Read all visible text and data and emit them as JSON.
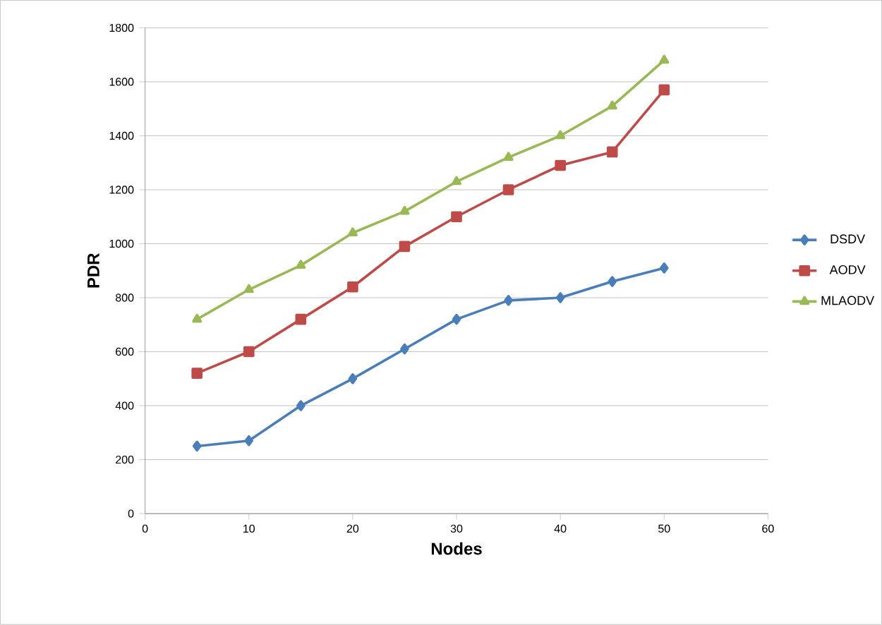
{
  "chart_data": {
    "type": "line",
    "xlabel": "Nodes",
    "ylabel": "PDR",
    "x": [
      5,
      10,
      15,
      20,
      25,
      30,
      35,
      40,
      45,
      50
    ],
    "series": [
      {
        "name": "DSDV",
        "color": "#4a7ebb",
        "marker": "diamond",
        "values": [
          250,
          270,
          400,
          500,
          610,
          720,
          790,
          800,
          860,
          910
        ]
      },
      {
        "name": "AODV",
        "color": "#be4b48",
        "marker": "square",
        "values": [
          520,
          600,
          720,
          840,
          990,
          1100,
          1200,
          1290,
          1340,
          1570
        ]
      },
      {
        "name": "MLAODV",
        "color": "#98b954",
        "marker": "triangle",
        "values": [
          720,
          830,
          920,
          1040,
          1120,
          1230,
          1320,
          1400,
          1510,
          1680
        ]
      }
    ],
    "xlim": [
      0,
      60
    ],
    "xticks": [
      0,
      10,
      20,
      30,
      40,
      50,
      60
    ],
    "ylim": [
      0,
      1800
    ],
    "yticks": [
      0,
      200,
      400,
      600,
      800,
      1000,
      1200,
      1400,
      1600,
      1800
    ],
    "grid": "y",
    "legend": "right"
  }
}
